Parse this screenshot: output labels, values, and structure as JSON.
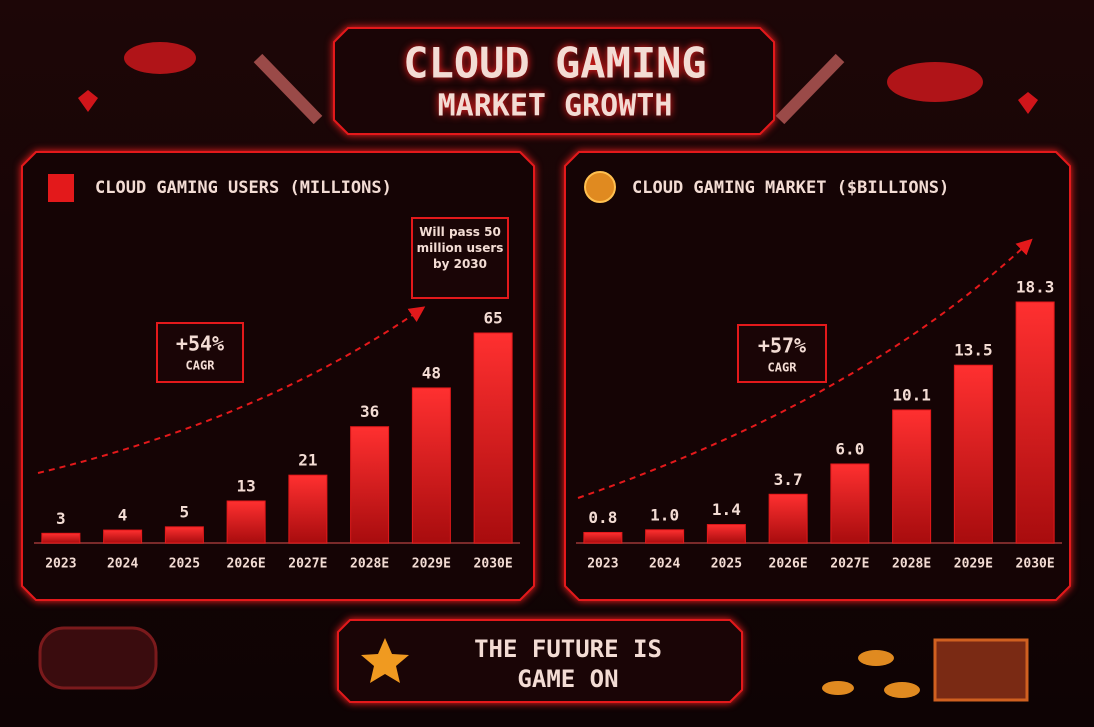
{
  "header": {
    "title": "CLOUD GAMING",
    "subtitle": "MARKET GROWTH"
  },
  "chart_data": [
    {
      "type": "bar",
      "title": "CLOUD GAMING USERS (MILLIONS)",
      "categories": [
        "2023",
        "2024",
        "2025",
        "2026E",
        "2027E",
        "2028E",
        "2029E",
        "2030E"
      ],
      "values": [
        3,
        4,
        5,
        13,
        21,
        36,
        48,
        65
      ],
      "color": "#e3191b",
      "cagr": {
        "value": "+54%",
        "label": "CAGR"
      },
      "callout": "Will pass 50 million users by 2030"
    },
    {
      "type": "bar",
      "title": "CLOUD GAMING MARKET ($BILLIONS)",
      "categories": [
        "2023",
        "2024",
        "2025",
        "2026E",
        "2027E",
        "2028E",
        "2029E",
        "2030E"
      ],
      "values": [
        0.8,
        1.0,
        1.4,
        3.7,
        6.0,
        10.1,
        13.5,
        18.3
      ],
      "value_labels": [
        "0.8",
        "1.0",
        "1.4",
        "3.7",
        "6.0",
        "10.1",
        "13.5",
        "18.3"
      ],
      "color": "#e3191b",
      "cagr": {
        "value": "+57%",
        "label": "CAGR"
      }
    }
  ],
  "footer": {
    "line1": "THE FUTURE IS",
    "line2": "GAME ON"
  }
}
